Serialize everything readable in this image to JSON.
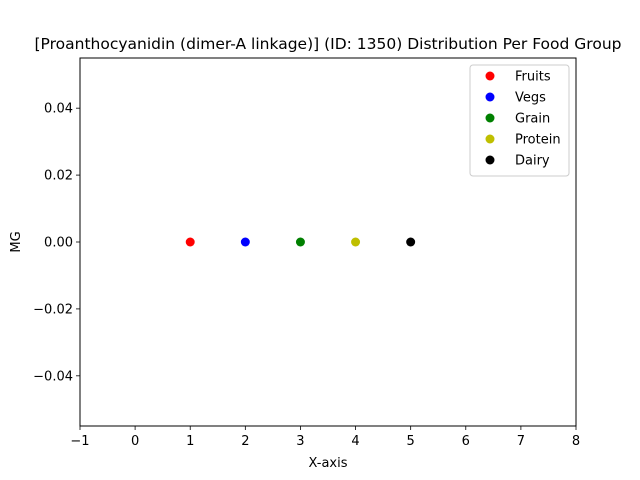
{
  "chart_data": {
    "type": "scatter",
    "title": "[Proanthocyanidin (dimer-A linkage)] (ID: 1350) Distribution Per Food Group",
    "xlabel": "X-axis",
    "ylabel": "MG",
    "xlim": [
      -1,
      8
    ],
    "ylim": [
      -0.055,
      0.055
    ],
    "xticks": [
      -1,
      0,
      1,
      2,
      3,
      4,
      5,
      6,
      7,
      8
    ],
    "xtick_labels": [
      "−1",
      "0",
      "1",
      "2",
      "3",
      "4",
      "5",
      "6",
      "7",
      "8"
    ],
    "yticks": [
      -0.04,
      -0.02,
      0.0,
      0.02,
      0.04
    ],
    "ytick_labels": [
      "−0.04",
      "−0.02",
      "0.00",
      "0.02",
      "0.04"
    ],
    "grid": false,
    "legend_position": "top-right",
    "series": [
      {
        "name": "Fruits",
        "color": "#ff0000",
        "points": [
          {
            "x": 1,
            "y": 0
          }
        ]
      },
      {
        "name": "Vegs",
        "color": "#0000ff",
        "points": [
          {
            "x": 2,
            "y": 0
          }
        ]
      },
      {
        "name": "Grain",
        "color": "#008000",
        "points": [
          {
            "x": 3,
            "y": 0
          }
        ]
      },
      {
        "name": "Protein",
        "color": "#bfbf00",
        "points": [
          {
            "x": 4,
            "y": 0
          }
        ]
      },
      {
        "name": "Dairy",
        "color": "#000000",
        "points": [
          {
            "x": 5,
            "y": 0
          }
        ]
      }
    ]
  }
}
